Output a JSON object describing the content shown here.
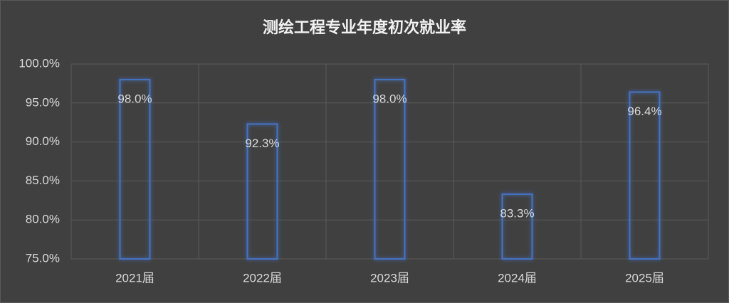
{
  "chart_data": {
    "type": "bar",
    "title": "测绘工程专业年度初次就业率",
    "categories": [
      "2021届",
      "2022届",
      "2023届",
      "2024届",
      "2025届"
    ],
    "values": [
      98.0,
      92.3,
      98.0,
      83.3,
      96.4
    ],
    "value_labels": [
      "98.0%",
      "92.3%",
      "98.0%",
      "83.3%",
      "96.4%"
    ],
    "color": "#4472c4",
    "ylim": [
      75,
      100
    ],
    "yticks": [
      {
        "value": 75,
        "label": "75.0%"
      },
      {
        "value": 80,
        "label": "80.0%"
      },
      {
        "value": 85,
        "label": "85.0%"
      },
      {
        "value": 90,
        "label": "90.0%"
      },
      {
        "value": 95,
        "label": "95.0%"
      },
      {
        "value": 100,
        "label": "100.0%"
      }
    ],
    "grid": true
  }
}
